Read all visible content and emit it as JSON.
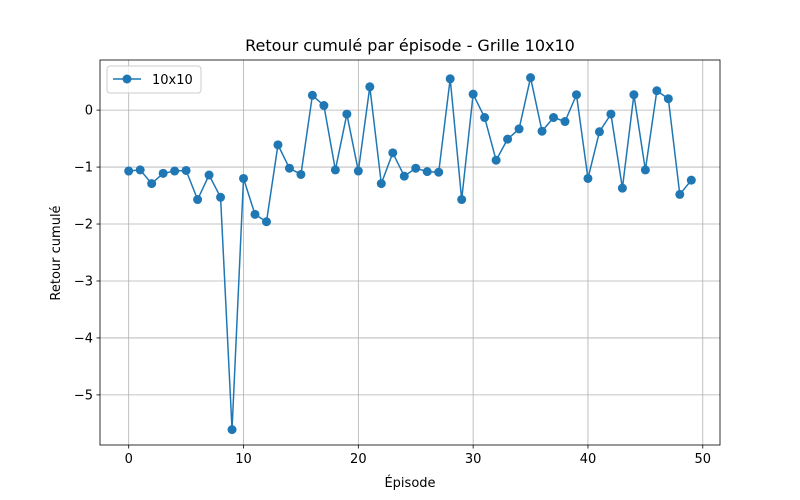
{
  "chart_data": {
    "type": "line",
    "title": "Retour cumulé par épisode - Grille 10x10",
    "xlabel": "Épisode",
    "ylabel": "Retour cumulé",
    "xlim": [
      -2.5,
      51.5
    ],
    "ylim": [
      -5.88,
      0.88
    ],
    "xticks": [
      0,
      10,
      20,
      30,
      40,
      50
    ],
    "yticks": [
      -5,
      -4,
      -3,
      -2,
      -1,
      0
    ],
    "xtick_labels": [
      "0",
      "10",
      "20",
      "30",
      "40",
      "50"
    ],
    "ytick_labels": [
      "−5",
      "−4",
      "−3",
      "−2",
      "−1",
      "0"
    ],
    "grid": true,
    "legend_position": "top-left",
    "color": "#1f77b4",
    "series": [
      {
        "name": "10x10",
        "x": [
          0,
          1,
          2,
          3,
          4,
          5,
          6,
          7,
          8,
          9,
          10,
          11,
          12,
          13,
          14,
          15,
          16,
          17,
          18,
          19,
          20,
          21,
          22,
          23,
          24,
          25,
          26,
          27,
          28,
          29,
          30,
          31,
          32,
          33,
          34,
          35,
          36,
          37,
          38,
          39,
          40,
          41,
          42,
          43,
          44,
          45,
          46,
          47,
          48,
          49
        ],
        "y": [
          -1.07,
          -1.05,
          -1.29,
          -1.11,
          -1.07,
          -1.06,
          -1.57,
          -1.14,
          -1.53,
          -5.61,
          -1.2,
          -1.83,
          -1.96,
          -0.61,
          -1.02,
          -1.13,
          0.26,
          0.08,
          -1.05,
          -0.07,
          -1.07,
          0.41,
          -1.29,
          -0.75,
          -1.16,
          -1.02,
          -1.08,
          -1.09,
          0.55,
          -1.57,
          0.28,
          -0.13,
          -0.88,
          -0.51,
          -0.33,
          0.57,
          -0.37,
          -0.13,
          -0.2,
          0.27,
          -1.2,
          -0.38,
          -0.07,
          -1.37,
          0.27,
          -1.05,
          0.34,
          0.2,
          -1.48,
          -1.23
        ]
      }
    ]
  }
}
